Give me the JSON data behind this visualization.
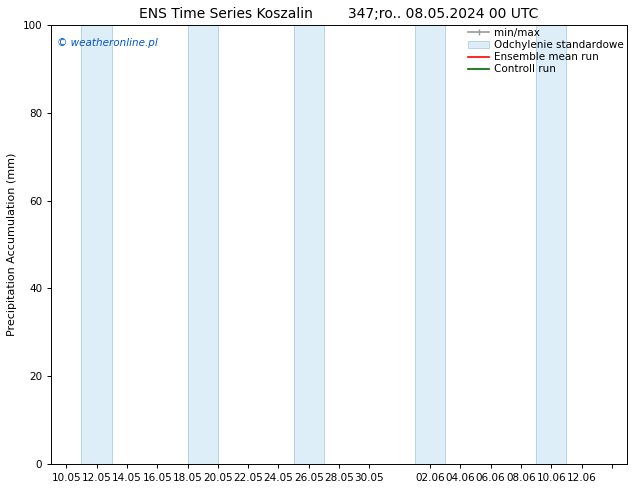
{
  "title": "ENS Time Series Koszalin        347;ro.. 08.05.2024 00 UTC",
  "ylabel": "Precipitation Accumulation (mm)",
  "watermark": "© weatheronline.pl",
  "ylim": [
    0,
    100
  ],
  "yticks": [
    0,
    20,
    40,
    60,
    80,
    100
  ],
  "band_color": "#ddeef8",
  "band_edge_color": "#b8d4e8",
  "background_color": "#ffffff",
  "title_fontsize": 10,
  "label_fontsize": 8,
  "tick_fontsize": 7.5,
  "legend_fontsize": 7.5,
  "tick_positions": [
    0,
    2,
    4,
    6,
    8,
    10,
    12,
    14,
    16,
    18,
    20,
    24,
    26,
    28,
    30,
    32,
    34,
    36
  ],
  "tick_labels": [
    "10.05",
    "12.05",
    "14.05",
    "16.05",
    "18.05",
    "20.05",
    "22.05",
    "24.05",
    "26.05",
    "28.05",
    "30.05",
    "02.06",
    "04.06",
    "06.06",
    "08.06",
    "10.06",
    "12.06",
    ""
  ],
  "xlim": [
    -1,
    37
  ],
  "bands_x": [
    [
      1.0,
      3.0
    ],
    [
      8.0,
      10.0
    ],
    [
      15.0,
      17.0
    ],
    [
      23.0,
      25.0
    ],
    [
      31.0,
      33.0
    ]
  ]
}
